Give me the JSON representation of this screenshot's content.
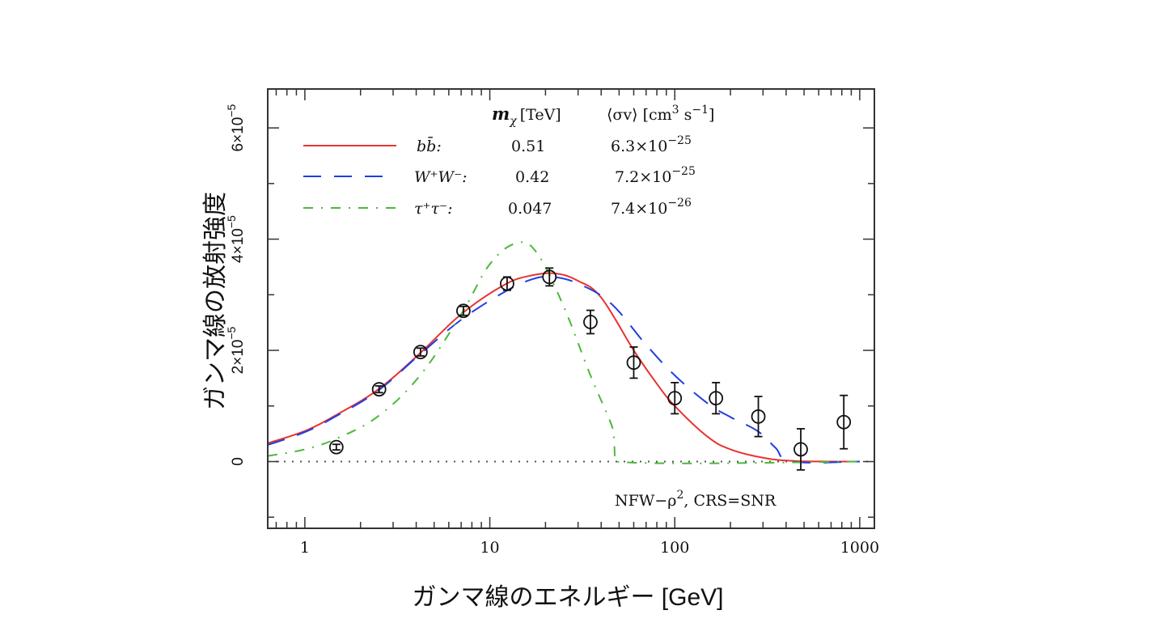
{
  "chart_data": {
    "type": "line",
    "title": "",
    "xlabel": "ガンマ線のエネルギー [GeV]",
    "ylabel": "ガンマ線の放射強度",
    "xscale": "log",
    "xlim": [
      0.63,
      1200
    ],
    "ylim": [
      -1.2e-05,
      6.7e-05
    ],
    "y_unit_multiplier": 1e-05,
    "x_ticks": [
      {
        "value": 1,
        "label": "1"
      },
      {
        "value": 10,
        "label": "10"
      },
      {
        "value": 100,
        "label": "100"
      },
      {
        "value": 1000,
        "label": "1000"
      }
    ],
    "y_ticks": [
      {
        "value": 0,
        "label": "0"
      },
      {
        "value": 2,
        "label": "2×10",
        "exp": "−5"
      },
      {
        "value": 4,
        "label": "4×10",
        "exp": "−5"
      },
      {
        "value": 6,
        "label": "6×10",
        "exp": "−5"
      }
    ],
    "y_minor_ticks": [
      -1,
      1,
      3,
      5
    ],
    "zero_line": true,
    "legend": {
      "placement": "top",
      "header_mass": "m",
      "header_mass_sub": "χ",
      "header_mass_unit": "[TeV]",
      "header_xsec": "⟨σv⟩ [cm",
      "header_xsec_sup1": "3",
      "header_xsec_mid": " s",
      "header_xsec_sup2": "−1",
      "header_xsec_end": "]"
    },
    "annotation": {
      "text": "NFW−ρ",
      "sup": "2",
      "rest": ", CRS=SNR",
      "placement": "bottom-right"
    },
    "series": [
      {
        "name": "bb̄",
        "legend_label": "bb̄:",
        "mass_TeV": "0.51",
        "xsec_mantissa": "6.3×10",
        "xsec_exp": "−25",
        "color": "#e8332f",
        "style": "solid",
        "x": [
          0.63,
          1,
          1.5,
          2.5,
          4.2,
          7,
          12,
          17,
          23,
          30,
          40,
          60,
          80,
          100,
          150,
          200,
          300,
          450,
          1000
        ],
        "y": [
          0.33,
          0.55,
          0.85,
          1.3,
          1.95,
          2.65,
          3.18,
          3.35,
          3.38,
          3.25,
          2.95,
          2.0,
          1.4,
          1.0,
          0.45,
          0.22,
          0.07,
          0.01,
          0.0
        ]
      },
      {
        "name": "W+W−",
        "legend_label": "W⁺W⁻:",
        "mass_TeV": "0.42",
        "xsec_mantissa": "7.2×10",
        "xsec_exp": "−25",
        "color": "#1f3fe0",
        "style": "dashed",
        "x": [
          0.63,
          1,
          1.5,
          2.5,
          4.2,
          7,
          12,
          17,
          22,
          30,
          45,
          70,
          100,
          150,
          200,
          280,
          350,
          430,
          1000
        ],
        "y": [
          0.3,
          0.53,
          0.83,
          1.28,
          1.93,
          2.55,
          3.05,
          3.28,
          3.32,
          3.2,
          2.85,
          2.1,
          1.55,
          1.05,
          0.8,
          0.55,
          0.25,
          0.0,
          0.0
        ]
      },
      {
        "name": "τ+τ−",
        "legend_label": "τ⁺τ⁻:",
        "mass_TeV": "0.047",
        "xsec_mantissa": "7.4×10",
        "xsec_exp": "−26",
        "color": "#4cb83a",
        "style": "dashdot",
        "x": [
          0.63,
          1,
          1.5,
          2.5,
          4.2,
          7,
          10,
          14,
          18,
          25,
          35,
          45,
          47,
          47.5,
          1000
        ],
        "y": [
          0.1,
          0.22,
          0.42,
          0.82,
          1.55,
          2.65,
          3.55,
          3.93,
          3.75,
          2.8,
          1.55,
          0.7,
          0.4,
          0.0,
          0.0
        ]
      }
    ],
    "data_points": {
      "name": "observed",
      "marker": "open-circle",
      "x": [
        1.48,
        2.52,
        4.22,
        7.2,
        12.4,
        21,
        35,
        60,
        100,
        167,
        283,
        480,
        820
      ],
      "y": [
        0.26,
        1.3,
        1.97,
        2.71,
        3.2,
        3.32,
        2.51,
        1.78,
        1.14,
        1.14,
        0.81,
        0.22,
        0.71
      ],
      "yerr": [
        0.05,
        0.06,
        0.07,
        0.08,
        0.12,
        0.16,
        0.21,
        0.28,
        0.28,
        0.28,
        0.36,
        0.37,
        0.48
      ]
    }
  }
}
